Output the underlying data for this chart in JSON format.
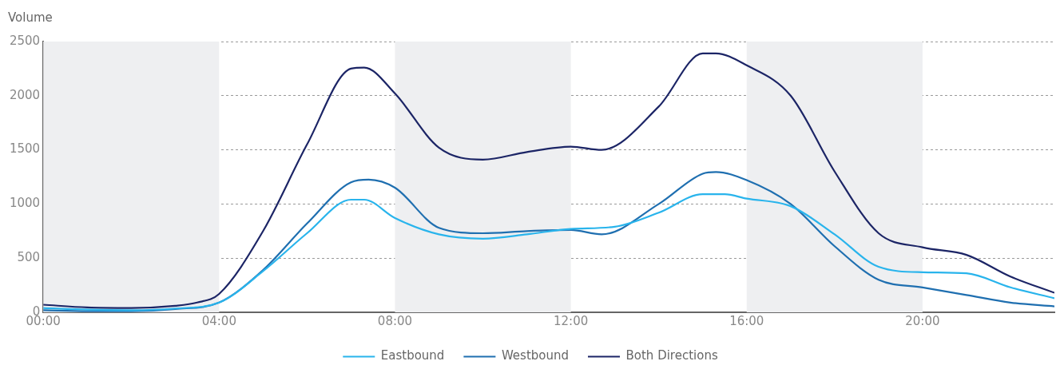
{
  "chart_data": {
    "type": "line",
    "ylabel": "Volume",
    "xlim": [
      0,
      23
    ],
    "xticks": [
      {
        "value": 0,
        "label": "00:00"
      },
      {
        "value": 4,
        "label": "04:00"
      },
      {
        "value": 8,
        "label": "08:00"
      },
      {
        "value": 12,
        "label": "12:00"
      },
      {
        "value": 16,
        "label": "16:00"
      },
      {
        "value": 20,
        "label": "20:00"
      }
    ],
    "ylim": [
      0,
      2500
    ],
    "yticks": [
      0,
      500,
      1000,
      1500,
      2000,
      2500
    ],
    "grid": "y",
    "legend": "bottom",
    "marker": "none",
    "line_style": "solid",
    "bands": [
      {
        "axis": "x",
        "from": 0,
        "to": 4,
        "color": "#eeeff1"
      },
      {
        "axis": "x",
        "from": 8,
        "to": 12,
        "color": "#eeeff1"
      },
      {
        "axis": "x",
        "from": 16,
        "to": 20,
        "color": "#eeeff1"
      }
    ],
    "series": [
      {
        "name": "Eastbound",
        "color": "#29b4ec",
        "x": [
          0,
          1,
          2,
          3,
          4,
          5,
          6,
          7,
          7.3,
          8,
          9,
          10,
          11,
          12,
          13,
          14,
          15,
          15.5,
          16,
          17,
          18,
          19,
          20,
          21,
          22,
          23
        ],
        "values": [
          40,
          25,
          20,
          35,
          90,
          380,
          730,
          1040,
          1040,
          870,
          720,
          680,
          720,
          770,
          790,
          920,
          1090,
          1090,
          1050,
          980,
          720,
          420,
          370,
          360,
          230,
          130
        ]
      },
      {
        "name": "Westbound",
        "color": "#1f6fb0",
        "x": [
          0,
          1,
          2,
          3,
          4,
          5,
          6,
          7,
          7.4,
          8,
          9,
          10,
          11,
          12,
          12.7,
          14,
          15,
          15.3,
          16,
          17,
          18,
          19,
          20,
          21,
          22,
          23
        ],
        "values": [
          20,
          10,
          10,
          30,
          90,
          390,
          820,
          1200,
          1225,
          1150,
          780,
          730,
          750,
          760,
          720,
          1000,
          1280,
          1295,
          1220,
          1000,
          610,
          300,
          230,
          160,
          90,
          55
        ]
      },
      {
        "name": "Both Directions",
        "color": "#1c2566",
        "x": [
          0,
          1,
          2,
          3,
          3.5,
          4,
          5,
          6,
          7,
          7.3,
          8,
          9,
          10,
          11,
          12,
          12.7,
          14,
          15,
          15.3,
          16,
          17,
          18,
          19,
          20,
          21,
          22,
          23
        ],
        "values": [
          70,
          45,
          40,
          60,
          90,
          170,
          750,
          1550,
          2250,
          2260,
          2020,
          1520,
          1410,
          1480,
          1530,
          1500,
          1900,
          2390,
          2390,
          2280,
          2000,
          1300,
          730,
          600,
          530,
          330,
          180
        ]
      }
    ]
  }
}
